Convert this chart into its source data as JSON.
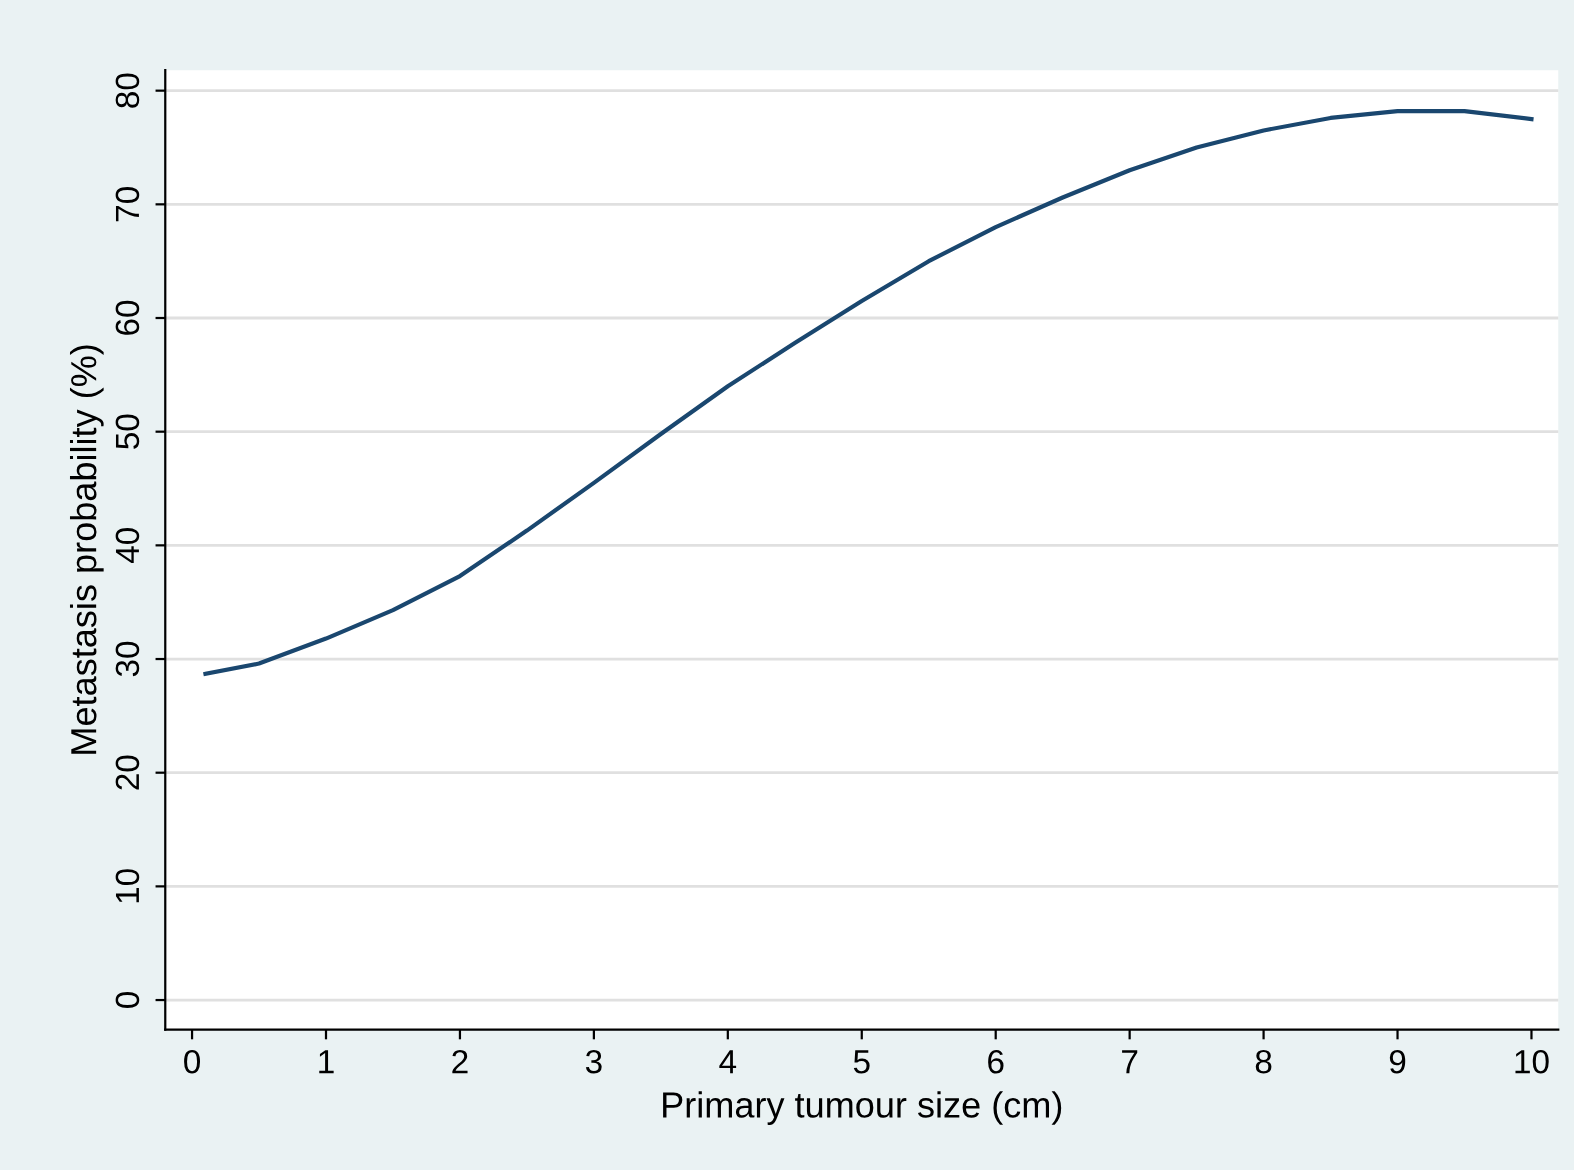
{
  "chart_data": {
    "type": "line",
    "xlabel": "Primary tumour size (cm)",
    "ylabel": "Metastasis probability (%)",
    "x": [
      0.1,
      0.5,
      1,
      1.5,
      2,
      2.5,
      3,
      3.5,
      4,
      4.5,
      5,
      5.5,
      6,
      6.5,
      7,
      7.5,
      8,
      8.5,
      9,
      9.5,
      10
    ],
    "series": [
      {
        "color": "#1a476f",
        "values": [
          28.7,
          29.6,
          31.8,
          34.3,
          37.3,
          41.3,
          45.5,
          49.8,
          54,
          57.8,
          61.5,
          65,
          68,
          70.6,
          73,
          75,
          76.5,
          77.6,
          78.2,
          78.2,
          77.5
        ]
      }
    ],
    "xlim": [
      -0.2,
      10.2
    ],
    "ylim": [
      -2.6,
      81.8
    ],
    "xticks": [
      0,
      1,
      2,
      3,
      4,
      5,
      6,
      7,
      8,
      9,
      10
    ],
    "yticks": [
      0,
      10,
      20,
      30,
      40,
      50,
      60,
      70,
      80
    ],
    "grid": "y",
    "legend": false,
    "marker": "none",
    "line_style": "solid"
  }
}
